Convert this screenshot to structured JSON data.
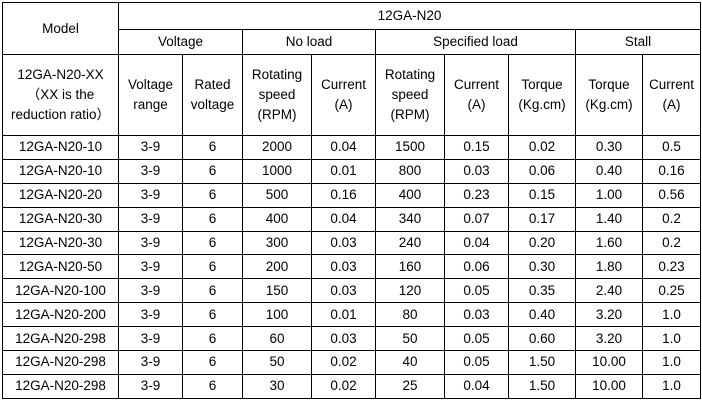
{
  "table": {
    "model_header": "Model",
    "product_header": "12GA-N20",
    "groups": {
      "voltage": "Voltage",
      "no_load": "No load",
      "specified_load": "Specified load",
      "stall": "Stall"
    },
    "subheaders": {
      "model_note": "12GA-N20-XX\n（XX is the reduction ratio）",
      "voltage_range": "Voltage range",
      "rated_voltage": "Rated voltage",
      "nl_speed": "Rotating speed (RPM)",
      "nl_current": "Current (A)",
      "sl_speed": "Rotating speed (RPM)",
      "sl_current": "Current (A)",
      "sl_torque": "Torque (Kg.cm)",
      "st_torque": "Torque (Kg.cm)",
      "st_current": "Current (A)"
    },
    "rows": [
      [
        "12GA-N20-10",
        "3-9",
        "6",
        "2000",
        "0.04",
        "1500",
        "0.15",
        "0.02",
        "0.30",
        "0.5"
      ],
      [
        "12GA-N20-10",
        "3-9",
        "6",
        "1000",
        "0.01",
        "800",
        "0.03",
        "0.06",
        "0.40",
        "0.16"
      ],
      [
        "12GA-N20-20",
        "3-9",
        "6",
        "500",
        "0.16",
        "400",
        "0.23",
        "0.15",
        "1.00",
        "0.56"
      ],
      [
        "12GA-N20-30",
        "3-9",
        "6",
        "400",
        "0.04",
        "340",
        "0.07",
        "0.17",
        "1.40",
        "0.2"
      ],
      [
        "12GA-N20-30",
        "3-9",
        "6",
        "300",
        "0.03",
        "240",
        "0.04",
        "0.20",
        "1.60",
        "0.2"
      ],
      [
        "12GA-N20-50",
        "3-9",
        "6",
        "200",
        "0.03",
        "160",
        "0.06",
        "0.30",
        "1.80",
        "0.23"
      ],
      [
        "12GA-N20-100",
        "3-9",
        "6",
        "150",
        "0.03",
        "120",
        "0.05",
        "0.35",
        "2.40",
        "0.25"
      ],
      [
        "12GA-N20-200",
        "3-9",
        "6",
        "100",
        "0.01",
        "80",
        "0.03",
        "0.40",
        "3.20",
        "1.0"
      ],
      [
        "12GA-N20-298",
        "3-9",
        "6",
        "60",
        "0.03",
        "50",
        "0.05",
        "0.60",
        "3.20",
        "1.0"
      ],
      [
        "12GA-N20-298",
        "3-9",
        "6",
        "50",
        "0.02",
        "40",
        "0.05",
        "1.50",
        "10.00",
        "1.0"
      ],
      [
        "12GA-N20-298",
        "3-9",
        "6",
        "30",
        "0.02",
        "25",
        "0.04",
        "1.50",
        "10.00",
        "1.0"
      ]
    ]
  }
}
